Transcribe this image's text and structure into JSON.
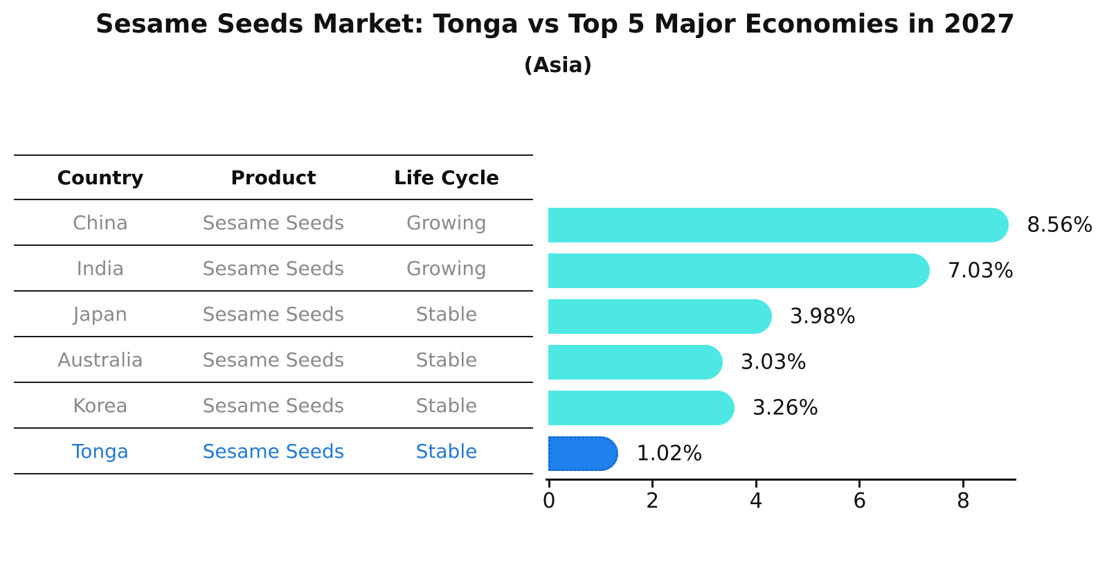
{
  "title": "Sesame Seeds Market: Tonga vs Top 5 Major Economies in 2027",
  "subtitle": "(Asia)",
  "table": {
    "headers": [
      "Country",
      "Product",
      "Life Cycle"
    ],
    "rows": [
      {
        "country": "China",
        "product": "Sesame Seeds",
        "life_cycle": "Growing",
        "highlight": false
      },
      {
        "country": "India",
        "product": "Sesame Seeds",
        "life_cycle": "Growing",
        "highlight": false
      },
      {
        "country": "Japan",
        "product": "Sesame Seeds",
        "life_cycle": "Stable",
        "highlight": false
      },
      {
        "country": "Australia",
        "product": "Sesame Seeds",
        "life_cycle": "Stable",
        "highlight": false
      },
      {
        "country": "Korea",
        "product": "Sesame Seeds",
        "life_cycle": "Stable",
        "highlight": false
      },
      {
        "country": "Tonga",
        "product": "Sesame Seeds",
        "life_cycle": "Stable",
        "highlight": true
      }
    ]
  },
  "chart_data": {
    "type": "bar",
    "orientation": "horizontal",
    "title": "Sesame Seeds Market: Tonga vs Top 5 Major Economies in 2027",
    "subtitle": "(Asia)",
    "categories": [
      "China",
      "India",
      "Japan",
      "Australia",
      "Korea",
      "Tonga"
    ],
    "values": [
      8.56,
      7.03,
      3.98,
      3.03,
      3.26,
      1.02
    ],
    "labels": [
      "8.56%",
      "7.03%",
      "3.98%",
      "3.03%",
      "3.26%",
      "1.02%"
    ],
    "xlim": [
      0,
      9
    ],
    "x_ticks": [
      0,
      2,
      4,
      6,
      8
    ],
    "grid": false,
    "legend": false,
    "highlight_index": 5
  },
  "colors": {
    "bar": "#4de8e4",
    "highlight_bar": "#1e81ec",
    "highlight_edge": "#1667d2",
    "highlight_text": "#2478d4",
    "table_text": "#8a8a8a",
    "text": "#111111"
  }
}
